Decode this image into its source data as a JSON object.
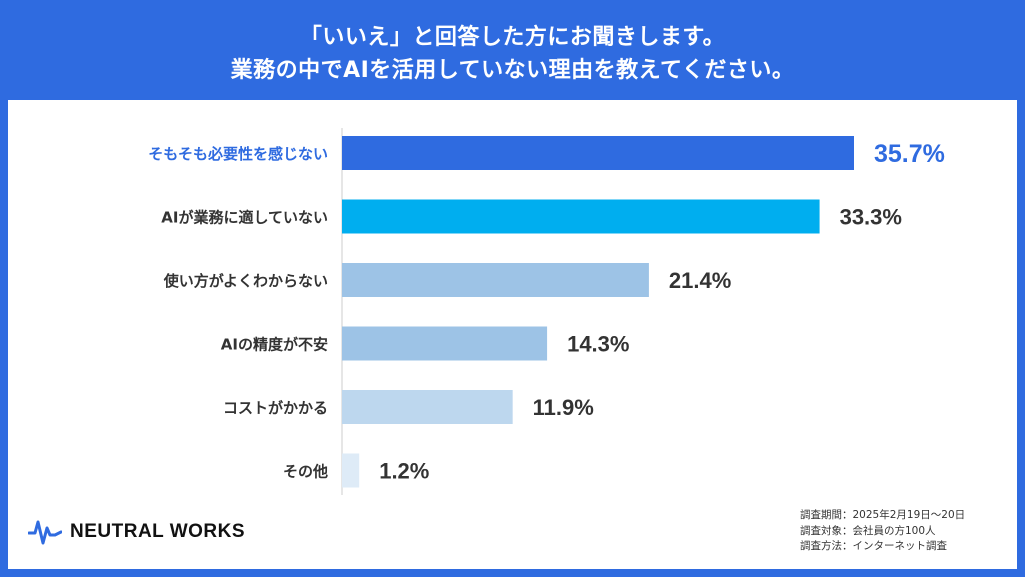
{
  "header": {
    "line1": "「いいえ」と回答した方にお聞きします。",
    "line2": "業務の中でAIを活用していない理由を教えてください。"
  },
  "brand": {
    "name": "NEUTRAL WORKS",
    "logo_icon": "pulse-wave-icon"
  },
  "survey_info": [
    {
      "label": "調査期間",
      "sep": "：",
      "value": "2025年2月19日～20日"
    },
    {
      "label": "調査対象",
      "sep": "：",
      "value": "会社員の方100人"
    },
    {
      "label": "調査方法",
      "sep": "：",
      "value": "インターネット調査"
    }
  ],
  "colors": {
    "frame": "#2f6be0",
    "highlight_text": "#2f6be0",
    "axis": "#cccccc"
  },
  "chart_data": {
    "type": "bar",
    "orientation": "horizontal",
    "title": "",
    "xlabel": "",
    "ylabel": "",
    "xlim": [
      0,
      40
    ],
    "grid": false,
    "legend": "none",
    "categories": [
      "そもそも必要性を感じない",
      "AIが業務に適していない",
      "使い方がよくわからない",
      "AIの精度が不安",
      "コストがかかる",
      "その他"
    ],
    "values": [
      35.7,
      33.3,
      21.4,
      14.3,
      11.9,
      1.2
    ],
    "value_labels": [
      "35.7%",
      "33.3%",
      "21.4%",
      "14.3%",
      "11.9%",
      "1.2%"
    ],
    "bar_colors": [
      "#2f6be0",
      "#00aeef",
      "#9dc3e6",
      "#9dc3e6",
      "#bdd7ee",
      "#deebf7"
    ],
    "highlight_index": 0
  }
}
